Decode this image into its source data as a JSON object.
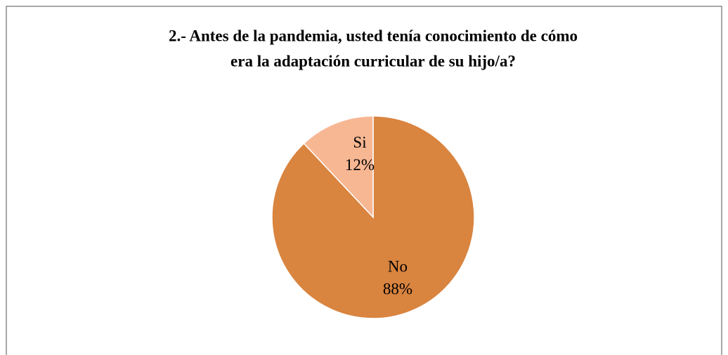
{
  "chart_data": {
    "type": "pie",
    "title": [
      "2.- Antes de la pandemia, usted tenía conocimiento de cómo",
      "era la adaptación curricular  de su hijo/a?"
    ],
    "categories": [
      "No",
      "Si"
    ],
    "values": [
      88,
      12
    ],
    "value_labels": [
      "88%",
      "12%"
    ],
    "colors": [
      "#d9843f",
      "#f7b793"
    ]
  }
}
